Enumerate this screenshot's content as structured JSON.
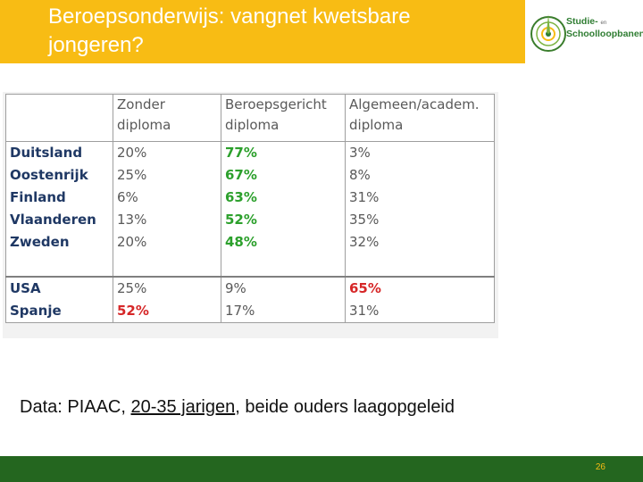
{
  "title": {
    "line1": "Beroepsonderwijs: vangnet kwetsbare",
    "line2": "jongeren?"
  },
  "logo": {
    "line1": "Studie-",
    "connector": "en",
    "line2": "Schoolloopbanen",
    "icon": "compass-circle-logo"
  },
  "table": {
    "headers": {
      "h1_line1": "Zonder",
      "h1_line2": "diploma",
      "h2_line1": "Beroepsgericht",
      "h2_line2": "diploma",
      "h3_line1": "Algemeen/academ.",
      "h3_line2": "diploma"
    },
    "rows": [
      {
        "country": "Duitsland",
        "zonder": "20%",
        "beroeps": "77%",
        "algemeen": "3%"
      },
      {
        "country": "Oostenrijk",
        "zonder": "25%",
        "beroeps": "67%",
        "algemeen": "8%"
      },
      {
        "country": "Finland",
        "zonder": "6%",
        "beroeps": "63%",
        "algemeen": "31%"
      },
      {
        "country": "Vlaanderen",
        "zonder": "13%",
        "beroeps": "52%",
        "algemeen": "35%"
      },
      {
        "country": "Zweden",
        "zonder": "20%",
        "beroeps": "48%",
        "algemeen": "32%"
      },
      {
        "country": "USA",
        "zonder": "25%",
        "beroeps": "9%",
        "algemeen": "65%"
      },
      {
        "country": "Spanje",
        "zonder": "52%",
        "beroeps": "17%",
        "algemeen": "31%"
      }
    ]
  },
  "caption": {
    "prefix": "Data: PIAAC, ",
    "underlined": "20-35 jarigen",
    "suffix": ", beide ouders laagopgeleid"
  },
  "colors": {
    "title_bar": "#f8bc14",
    "footer_bar": "#24661f",
    "highlight_green": "#2ca02c",
    "highlight_red": "#d62728",
    "row_label": "#1f3864"
  },
  "footer": {
    "page_number": "26"
  }
}
